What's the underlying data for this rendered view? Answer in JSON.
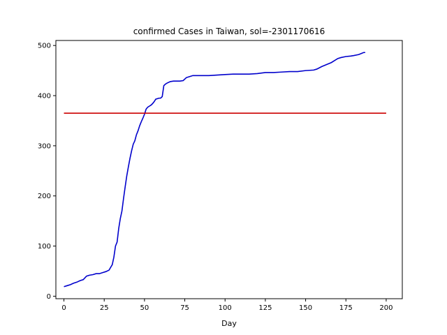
{
  "chart_data": {
    "type": "line",
    "title": "confirmed Cases in Taiwan, sol=-2301170616",
    "xlabel": "Day",
    "ylabel": "",
    "xlim": [
      -5,
      210
    ],
    "ylim": [
      -5,
      510
    ],
    "xticks": [
      0,
      25,
      50,
      75,
      100,
      125,
      150,
      175,
      200
    ],
    "yticks": [
      0,
      100,
      200,
      300,
      400,
      500
    ],
    "grid": false,
    "series": [
      {
        "color": "#0000cc",
        "x": [
          0,
          2,
          4,
          6,
          8,
          10,
          12,
          14,
          16,
          18,
          20,
          22,
          24,
          26,
          28,
          30,
          31,
          32,
          33,
          34,
          35,
          36,
          37,
          38,
          39,
          40,
          41,
          42,
          43,
          44,
          45,
          46,
          47,
          48,
          49,
          50,
          51,
          52,
          53,
          54,
          55,
          56,
          57,
          58,
          59,
          60,
          61,
          62,
          63,
          64,
          66,
          68,
          70,
          72,
          74,
          76,
          78,
          80,
          85,
          90,
          95,
          100,
          105,
          110,
          115,
          120,
          125,
          130,
          135,
          140,
          145,
          150,
          155,
          157,
          160,
          163,
          166,
          168,
          170,
          172,
          175,
          178,
          180,
          183,
          186,
          187
        ],
        "y": [
          19,
          21,
          23,
          26,
          28,
          31,
          33,
          40,
          42,
          43,
          45,
          45,
          47,
          49,
          52,
          63,
          78,
          100,
          108,
          135,
          155,
          170,
          195,
          218,
          240,
          258,
          275,
          290,
          303,
          310,
          322,
          330,
          340,
          348,
          355,
          363,
          373,
          377,
          379,
          381,
          384,
          388,
          393,
          394,
          395,
          395,
          398,
          420,
          423,
          425,
          428,
          429,
          429,
          429,
          430,
          436,
          438,
          440,
          440,
          440,
          441,
          442,
          443,
          443,
          443,
          444,
          446,
          446,
          447,
          448,
          448,
          450,
          451,
          453,
          458,
          462,
          466,
          470,
          474,
          476,
          478,
          479,
          480,
          482,
          486,
          486
        ]
      },
      {
        "color": "#cc0000",
        "x": [
          0,
          200
        ],
        "y": [
          365,
          365
        ]
      }
    ]
  }
}
